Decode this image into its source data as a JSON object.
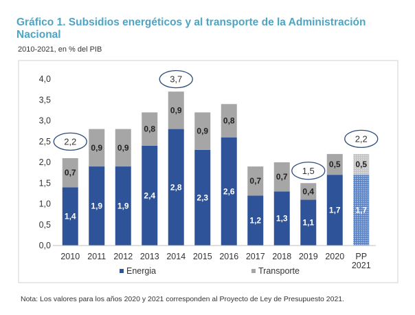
{
  "header": {
    "title": "Gráfico 1. Subsidios energéticos y al transporte de la Administración Nacional",
    "subtitle": "2010-2021, en % del PIB"
  },
  "footer": {
    "note": "Nota: Los valores para los años 2020 y 2021 corresponden al Proyecto de Ley de Presupuesto 2021."
  },
  "colors": {
    "energia": "#2e5398",
    "transporte": "#a6a6a6",
    "callout": "#2e4d7a"
  },
  "chart_data": {
    "type": "bar",
    "stacked": true,
    "categories": [
      [
        "2010"
      ],
      [
        "2011"
      ],
      [
        "2012"
      ],
      [
        "2013"
      ],
      [
        "2014"
      ],
      [
        "2015"
      ],
      [
        "2016"
      ],
      [
        "2017"
      ],
      [
        "2018"
      ],
      [
        "2019"
      ],
      [
        "2020"
      ],
      [
        "PP",
        "2021"
      ]
    ],
    "series": [
      {
        "name": "Energia",
        "values": [
          1.4,
          1.9,
          1.9,
          2.4,
          2.8,
          2.3,
          2.6,
          1.2,
          1.3,
          1.1,
          1.7,
          1.7
        ],
        "labels": [
          "1,4",
          "1,9",
          "1,9",
          "2,4",
          "2,8",
          "2,3",
          "2,6",
          "1,2",
          "1,3",
          "1,1",
          "1,7",
          "1,7"
        ]
      },
      {
        "name": "Transporte",
        "values": [
          0.7,
          0.9,
          0.9,
          0.8,
          0.9,
          0.9,
          0.8,
          0.7,
          0.7,
          0.4,
          0.5,
          0.5
        ],
        "labels": [
          "0,7",
          "0,9",
          "0,9",
          "0,8",
          "0,9",
          "0,9",
          "0,8",
          "0,7",
          "0,7",
          "0,4",
          "0,5",
          "0,5"
        ]
      }
    ],
    "projected_index": 11,
    "totals_callouts": [
      {
        "index": 0,
        "label": "2,2",
        "value": 2.2
      },
      {
        "index": 4,
        "label": "3,7",
        "value": 3.7
      },
      {
        "index": 9,
        "label": "1,5",
        "value": 1.5
      },
      {
        "index": 11,
        "label": "2,2",
        "value": 2.2
      }
    ],
    "y_ticks": [
      "0,0",
      "0,5",
      "1,0",
      "1,5",
      "2,0",
      "2,5",
      "3,0",
      "3,5",
      "4,0"
    ],
    "ylim": [
      0,
      4.0
    ],
    "legend_position": "bottom"
  }
}
